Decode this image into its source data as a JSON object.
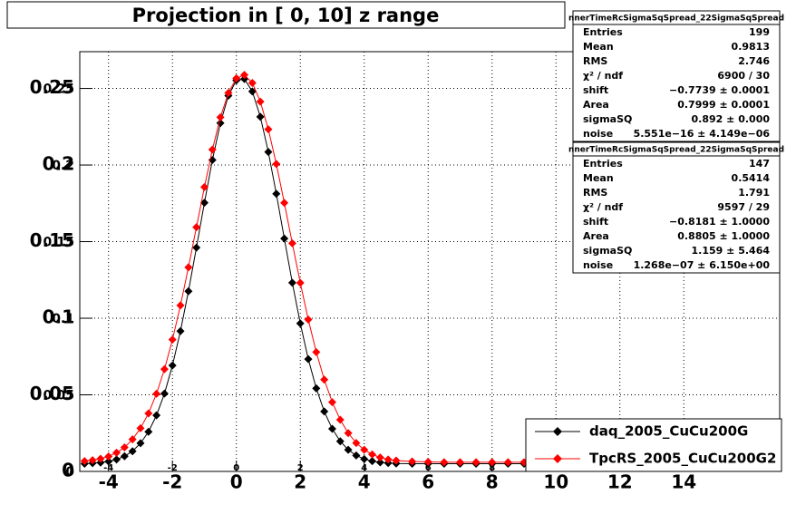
{
  "chart_data": {
    "type": "line",
    "title": "Projection in [   0,  10] z range",
    "x": [
      -4.75,
      -4.5,
      -4.25,
      -4,
      -3.75,
      -3.5,
      -3.25,
      -3,
      -2.75,
      -2.5,
      -2.25,
      -2,
      -1.75,
      -1.5,
      -1.25,
      -1,
      -0.75,
      -0.5,
      -0.25,
      0,
      0.25,
      0.5,
      0.75,
      1,
      1.25,
      1.5,
      1.75,
      2,
      2.25,
      2.5,
      2.75,
      3,
      3.25,
      3.5,
      3.75,
      4,
      4.25,
      4.5,
      4.75,
      5,
      5.5,
      6,
      6.5,
      7,
      7.5,
      8,
      8.5,
      9,
      9.5,
      10
    ],
    "series": [
      {
        "name": "daq_2005_CuCu200G",
        "color": "#000000",
        "values": [
          0.005,
          0.0054,
          0.0058,
          0.0065,
          0.0078,
          0.0099,
          0.0132,
          0.0184,
          0.0259,
          0.0366,
          0.0508,
          0.0692,
          0.0916,
          0.1176,
          0.1461,
          0.1754,
          0.2033,
          0.2274,
          0.2453,
          0.2553,
          0.2562,
          0.248,
          0.2315,
          0.2085,
          0.1812,
          0.152,
          0.1232,
          0.0966,
          0.0733,
          0.0542,
          0.0391,
          0.0278,
          0.0197,
          0.0141,
          0.0104,
          0.0081,
          0.0067,
          0.0059,
          0.0055,
          0.0052,
          0.005,
          0.005,
          0.005,
          0.005,
          0.005,
          0.005,
          0.005,
          0.005,
          0.005,
          0.005
        ]
      },
      {
        "name": "TpcRS_2005_CuCu200G2",
        "color": "#ff0000",
        "values": [
          0.0067,
          0.0073,
          0.0083,
          0.0098,
          0.0122,
          0.0157,
          0.0209,
          0.0282,
          0.0379,
          0.0507,
          0.0667,
          0.086,
          0.1084,
          0.1332,
          0.1594,
          0.1856,
          0.2101,
          0.2312,
          0.2471,
          0.2566,
          0.2588,
          0.2536,
          0.2414,
          0.2233,
          0.2007,
          0.1753,
          0.1489,
          0.1231,
          0.0991,
          0.0779,
          0.0599,
          0.0452,
          0.0337,
          0.025,
          0.0186,
          0.0141,
          0.0111,
          0.0091,
          0.0078,
          0.0071,
          0.0065,
          0.0062,
          0.006,
          0.006,
          0.006,
          0.006,
          0.006,
          0.006,
          0.006,
          0.006
        ]
      }
    ],
    "xlim": [
      -4.9,
      17
    ],
    "xticks": [
      -4,
      -2,
      0,
      2,
      4,
      6,
      8,
      10,
      12,
      14
    ],
    "ylim": [
      0,
      0.274
    ],
    "yticks": [
      0,
      0.05,
      0.1,
      0.15,
      0.2,
      0.25
    ],
    "grid": true,
    "legend": "bottom-right"
  },
  "stats_boxes": [
    {
      "title": "nnerTimeRcSigmaSqSpread_22SigmaSqSpread",
      "rows": [
        [
          "Entries",
          "199"
        ],
        [
          "Mean",
          "0.9813"
        ],
        [
          "RMS",
          "2.746"
        ],
        [
          "χ² / ndf",
          "6900 / 30"
        ],
        [
          "shift",
          "−0.7739 ± 0.0001"
        ],
        [
          "Area",
          "0.7999 ± 0.0001"
        ],
        [
          "sigmaSQ",
          "0.892 ± 0.000"
        ],
        [
          "noise",
          "5.551e−16 ± 4.149e−06"
        ]
      ]
    },
    {
      "title": "nnerTimeRcSigmaSqSpread_22SigmaSqSpread",
      "rows": [
        [
          "Entries",
          "147"
        ],
        [
          "Mean",
          "0.5414"
        ],
        [
          "RMS",
          "1.791"
        ],
        [
          "χ² / ndf",
          "9597 / 29"
        ],
        [
          "shift",
          "−0.8181 ± 1.0000"
        ],
        [
          "Area",
          "0.8805 ± 1.0000"
        ],
        [
          "sigmaSQ",
          "1.159 ± 5.464"
        ],
        [
          "noise",
          "1.268e−07 ± 6.150e+00"
        ]
      ]
    }
  ]
}
